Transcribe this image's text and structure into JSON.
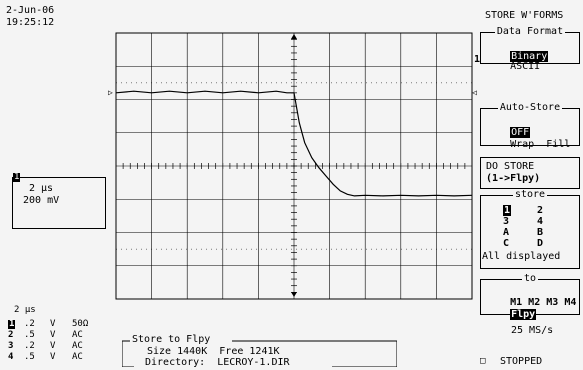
{
  "header": {
    "date": "2-Jun-06",
    "time": "19:25:12",
    "menu_title": "STORE W'FORMS"
  },
  "data_format": {
    "title": "Data Format",
    "options": [
      "Binary",
      "ASCII"
    ],
    "selected": "Binary"
  },
  "auto_store": {
    "title": "Auto-Store",
    "state": "OFF",
    "options": [
      "Wrap",
      "Fill"
    ]
  },
  "do_store": {
    "line1": "DO STORE",
    "line2_prefix": "(",
    "line2_source": "1",
    "line2_suffix": "->Flpy)"
  },
  "store": {
    "title": "store",
    "items": [
      "1",
      "2",
      "3",
      "4",
      "A",
      "B",
      "C",
      "D"
    ],
    "selected": "1",
    "footer": "All displayed"
  },
  "to": {
    "title": "to",
    "options": [
      "M1",
      "M2",
      "M3",
      "M4",
      "Flpy"
    ],
    "selected": "Flpy"
  },
  "trace_marker": {
    "channel": "1",
    "timebase": "2 μs",
    "volts": "200 mV"
  },
  "markers": {
    "left_level": "▷",
    "right_level": "◁",
    "right_trace": "1"
  },
  "channels": {
    "timebase": "2 μs",
    "rows": [
      {
        "ch": "1",
        "value": ".2",
        "unit": "V",
        "coupling": "50Ω"
      },
      {
        "ch": "2",
        "value": ".5",
        "unit": "V",
        "coupling": "AC"
      },
      {
        "ch": "3",
        "value": ".2",
        "unit": "V",
        "coupling": "AC"
      },
      {
        "ch": "4",
        "value": ".5",
        "unit": "V",
        "coupling": "AC"
      }
    ]
  },
  "store_info": {
    "title": "Store to Flpy",
    "size_label": "Size",
    "size_value": "1440K",
    "free_label": "Free",
    "free_value": "1241K",
    "dir_label": "Directory:",
    "dir_value": "LECROY-1.DIR"
  },
  "acquisition": {
    "sample_rate": "25 MS/s",
    "status": "STOPPED"
  },
  "chart_data": {
    "type": "line",
    "xlabel": "",
    "ylabel": "",
    "xlim": [
      0,
      10
    ],
    "ylim": [
      -4,
      4
    ],
    "grid": true,
    "series": [
      {
        "x": [
          0,
          0.5,
          1,
          1.5,
          2,
          2.5,
          3,
          3.5,
          4,
          4.5,
          4.8,
          5.0,
          5.15,
          5.3,
          5.5,
          5.7,
          5.9,
          6.1,
          6.3,
          6.5,
          6.7,
          7,
          7.5,
          8,
          8.5,
          9,
          9.5,
          10
        ],
        "y": [
          2.2,
          2.25,
          2.2,
          2.25,
          2.2,
          2.25,
          2.2,
          2.25,
          2.2,
          2.25,
          2.2,
          2.2,
          1.3,
          0.7,
          0.25,
          -0.05,
          -0.3,
          -0.55,
          -0.75,
          -0.85,
          -0.9,
          -0.88,
          -0.9,
          -0.88,
          -0.9,
          -0.88,
          -0.9,
          -0.88
        ]
      }
    ]
  }
}
